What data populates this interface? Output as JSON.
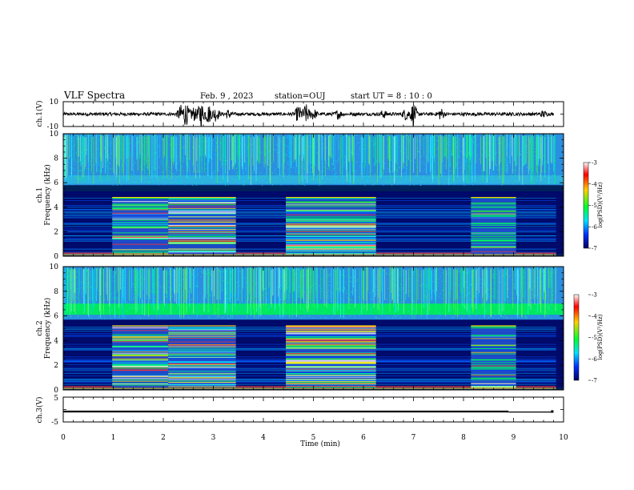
{
  "header": {
    "title": "VLF Spectra",
    "date": "Feb. 9 , 2023",
    "station": "station=OUJ",
    "start": "start UT =  8 : 10 : 0"
  },
  "chart_data": [
    {
      "type": "line",
      "panel": "ch1-waveform",
      "ylabel": "ch.1(V)",
      "ylim": [
        -10,
        10
      ],
      "yticks": [
        "10",
        "-10"
      ],
      "x_range_min": [
        0,
        9.8
      ],
      "baseline": 0,
      "bursts_min": [
        {
          "t": 2.35,
          "amp": 6
        },
        {
          "t": 2.45,
          "amp": 8
        },
        {
          "t": 2.6,
          "amp": 5
        },
        {
          "t": 2.75,
          "amp": 9
        },
        {
          "t": 2.9,
          "amp": 7
        },
        {
          "t": 3.05,
          "amp": 5
        },
        {
          "t": 3.3,
          "amp": 3
        },
        {
          "t": 4.7,
          "amp": 6
        },
        {
          "t": 4.85,
          "amp": 7
        },
        {
          "t": 5.0,
          "amp": 4
        },
        {
          "t": 5.5,
          "amp": 3
        },
        {
          "t": 6.4,
          "amp": 2.5
        },
        {
          "t": 6.85,
          "amp": 4
        },
        {
          "t": 7.0,
          "amp": 8
        },
        {
          "t": 7.55,
          "amp": 4
        },
        {
          "t": 9.6,
          "amp": 2
        }
      ]
    },
    {
      "type": "heatmap",
      "panel": "ch1-spectrogram",
      "ylabel": "ch.1\nFrequency (kHz)",
      "xlim": [
        0,
        10
      ],
      "ylim": [
        0,
        10
      ],
      "yticks": [
        0,
        2,
        4,
        6,
        8,
        10
      ],
      "active_band_khz": [
        0.2,
        4.8
      ],
      "bursts_min": [
        [
          0.98,
          2.1,
          0.7
        ],
        [
          2.1,
          3.45,
          1.0
        ],
        [
          4.45,
          6.25,
          1.0
        ],
        [
          8.15,
          9.05,
          0.8
        ]
      ],
      "colorbar": {
        "label": "log(PSD)(V²/Hz)",
        "ticks": [
          -3,
          -4,
          -5,
          -6,
          -7
        ]
      }
    },
    {
      "type": "heatmap",
      "panel": "ch2-spectrogram",
      "ylabel": "ch.2\nFrequency (kHz)",
      "xlim": [
        0,
        10
      ],
      "ylim": [
        0,
        10
      ],
      "yticks": [
        0,
        2,
        4,
        6,
        8,
        10
      ],
      "active_band_khz": [
        0.2,
        5.2
      ],
      "bursts_min": [
        [
          0.98,
          2.1,
          1.0
        ],
        [
          2.1,
          3.45,
          1.0
        ],
        [
          4.45,
          6.25,
          1.0
        ],
        [
          8.15,
          9.05,
          0.8
        ]
      ],
      "colorbar": {
        "label": "log(PSD)(V²/Hz)",
        "ticks": [
          -3,
          -4,
          -5,
          -6,
          -7
        ]
      }
    },
    {
      "type": "line",
      "panel": "ch3-waveform",
      "ylabel": "ch.3(V)",
      "xlabel": "Time (min)",
      "ylim": [
        -5,
        5
      ],
      "yticks": [
        "5",
        "-5"
      ],
      "xticks": [
        0,
        1,
        2,
        3,
        4,
        5,
        6,
        7,
        8,
        9,
        10
      ],
      "segments": [
        {
          "x": [
            0,
            8.9
          ],
          "y": -0.8
        },
        {
          "x": [
            8.9,
            9.8
          ],
          "y": -1.0
        }
      ]
    }
  ]
}
